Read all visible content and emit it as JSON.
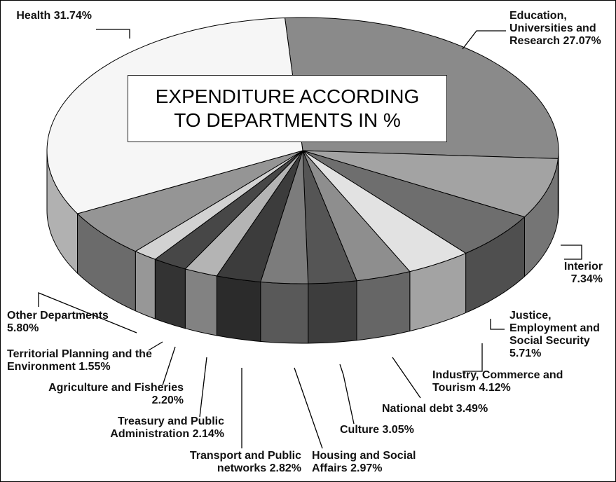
{
  "chart_data": {
    "type": "pie3d",
    "title": "EXPENDITURE ACCORDING TO DEPARTMENTS IN %",
    "categories": [
      "Education, Universities and Research",
      "Interior",
      "Justice, Employment and Social Security",
      "Industry, Commerce and Tourism",
      "National debt",
      "Culture",
      "Housing and Social Affairs",
      "Transport and Public networks",
      "Treasury and Public Administration",
      "Agriculture and Fisheries",
      "Territorial Planning and the Environment",
      "Other Departments",
      "Health"
    ],
    "values": [
      27.07,
      7.34,
      5.71,
      4.12,
      3.49,
      3.05,
      2.97,
      2.82,
      2.14,
      2.2,
      1.55,
      5.8,
      31.74
    ],
    "value_labels": [
      "27.07%",
      "7.34%",
      "5.71%",
      "4.12%",
      "3.49%",
      "3.05%",
      "2.97%",
      "2.82%",
      "2.14%",
      "2.20%",
      "1.55%",
      "5.80%",
      "31.74%"
    ],
    "colors": [
      "#8a8a8a",
      "#a3a3a3",
      "#6e6e6e",
      "#e2e2e2",
      "#8e8e8e",
      "#555555",
      "#7c7c7c",
      "#3c3c3c",
      "#b4b4b4",
      "#474747",
      "#d2d2d2",
      "#959595",
      "#f6f6f6"
    ]
  }
}
